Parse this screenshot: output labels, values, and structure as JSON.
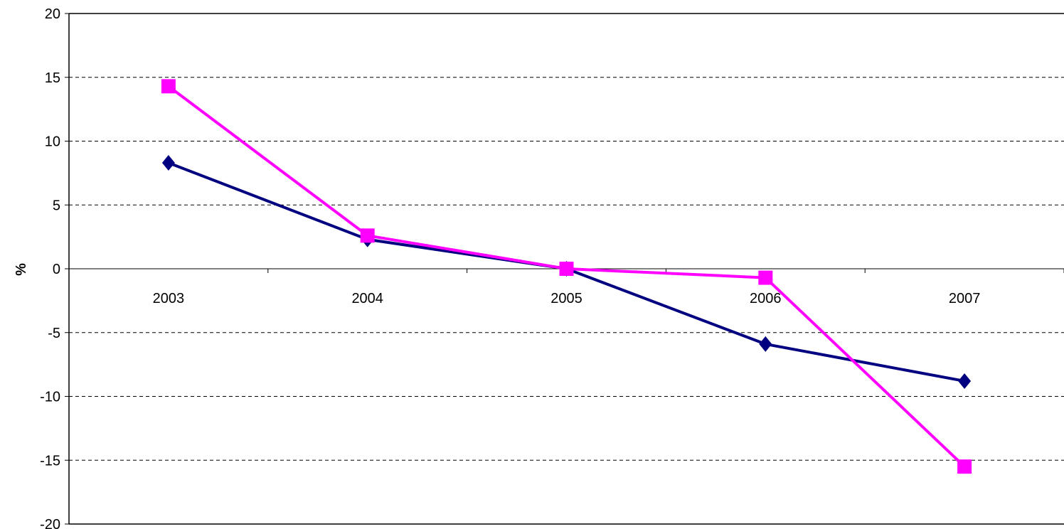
{
  "chart_data": {
    "type": "line",
    "title": "",
    "xlabel": "",
    "ylabel": "%",
    "categories": [
      "2003",
      "2004",
      "2005",
      "2006",
      "2007"
    ],
    "ylim": [
      -20,
      20
    ],
    "yticks": [
      20,
      15,
      10,
      5,
      0,
      -5,
      -10,
      -15,
      -20
    ],
    "grid": true,
    "legend": "none",
    "series": [
      {
        "color": "#000080",
        "marker": "diamond",
        "values": [
          8.3,
          2.3,
          0.0,
          -5.9,
          -8.8
        ]
      },
      {
        "color": "#FF00FF",
        "marker": "square",
        "values": [
          14.3,
          2.6,
          0.0,
          -0.7,
          -15.5
        ]
      }
    ]
  }
}
